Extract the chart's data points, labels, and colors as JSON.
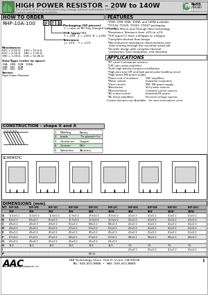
{
  "title": "HIGH POWER RESISTOR – 20W to 140W",
  "subtitle1": "The content of this specification may change without notification 12/07/07",
  "subtitle2": "Custom solutions are available.",
  "how_to_order_title": "HOW TO ORDER",
  "features_title": "FEATURES",
  "features": [
    "20W, 25W, 50W, 100W, and 140W available",
    "TO126, TO220, TO263, TO247 packaging",
    "Surface Mount and Through Hole technology",
    "Resistance Tolerance from ±5% to ±1%",
    "TCR (ppm/°C) from ±250ppm to ±50ppm",
    "Complete thermal flow design",
    "Non-Inductive impedance characteristics and heat venting through the insulated metal tab",
    "Durable design with complete thermal conduction, heat dissipation, and vibration"
  ],
  "applications_title": "APPLICATIONS",
  "applications_col1": [
    "RF circuit termination resistors",
    "CRT color video amplifiers",
    "Suite high-density compact installations",
    "High precision CRT and high speed pulse handling circuit",
    "High speed SW power supply",
    "Power unit of machines",
    "Motor control",
    "Drive circuits",
    "Automotive",
    "Measurements",
    "AC motor control",
    "AC linear amplifiers"
  ],
  "applications_col2": [
    "VHF amplifiers",
    "Industrial computers",
    "IPM, SW power supply",
    "Volt power sources",
    "Constant current sources",
    "Industrial RF power",
    "Precision voltage sources"
  ],
  "applications_footer": "Custom Solutions are Available – for more information, send",
  "construction_title": "CONSTRUCTION – shape X and A",
  "construction_rows": [
    [
      "1",
      "Molding",
      "Epoxy"
    ],
    [
      "2",
      "Leads",
      "Tin plated+Cu"
    ],
    [
      "3",
      "Conductor",
      "Copper"
    ],
    [
      "4",
      "Custom",
      "NiCr"
    ],
    [
      "5",
      "Substrate",
      "Alumina"
    ]
  ],
  "schematic_label": "SCHEMATIC",
  "dimensions_title": "DIMENSIONS (mm)",
  "table_headers": [
    "W/T",
    "RHP-10A",
    "RHP-10B",
    "RHP-10C",
    "RHP-20B",
    "RHP-25C",
    "RHP-25C",
    "RHP-40A",
    "RHP-50B",
    "RHP-50C",
    "RHP-100C"
  ],
  "table_subheaders": [
    "",
    "20W",
    "25W",
    "25W",
    "25W",
    "50W",
    "100W",
    "50W",
    "50W",
    "100W",
    "140W"
  ],
  "dim_labels": [
    "A",
    "B",
    "C",
    "D",
    "E",
    "F",
    "G",
    "H",
    "I",
    "P"
  ],
  "table_data": [
    [
      "A",
      "10.4±0.2",
      "10.4±0.2",
      "10.4±0.2",
      "15.9±0.2",
      "17.8±0.2",
      "17.8±0.2",
      "4.1±0.2",
      "4.1±0.2",
      "4.1±0.2",
      "4.1±0.2"
    ],
    [
      "B",
      "8.1±0.2",
      "8.1±0.2",
      "8.1±0.2",
      "12.7±0.2",
      "15.0±0.2",
      "15.0±0.2",
      "4.1±0.2",
      "4.1±0.2",
      "4.1±0.2",
      "4.1±0.2"
    ],
    [
      "C",
      "4.9±0.2",
      "4.9±0.2",
      "4.9±0.2",
      "8.1±0.2",
      "8.8±0.2",
      "8.8±0.2",
      "4.1±0.2",
      "4.1±0.2",
      "4.1±0.2",
      "4.1±0.2"
    ],
    [
      "D",
      "2.5±0.2",
      "2.5±0.2",
      "2.5±0.2",
      "2.7±0.2",
      "5.2±0.2",
      "5.2±0.2",
      "4.1±0.2",
      "4.1±0.2",
      "4.1±0.2",
      "4.1±0.2"
    ],
    [
      "E",
      "4.5±0.2",
      "4.5±0.2",
      "4.5±0.2",
      "4.5±0.2",
      "4.5±0.2",
      "4.5±0.2",
      "4.1±0.2",
      "4.1±0.2",
      "4.1±0.2",
      "4.1±0.2"
    ],
    [
      "F",
      "0.7±0.1",
      "0.7±0.1",
      "0.7±0.1",
      "0.8±0.1",
      "0.7±0.1",
      "0.7±0.1",
      "0.8±0.1",
      "0.8±0.1",
      "0.8±0.1",
      "0.8±0.1"
    ],
    [
      "G",
      "2.5±0.2",
      "2.5±0.2",
      "2.5±0.2",
      "2.5±0.2",
      "2.5±0.2",
      "2.5±0.2",
      "-",
      "-",
      "-",
      "-"
    ],
    [
      "H",
      "13.0",
      "13.0",
      "13.0",
      "13.0",
      "13.0",
      "13.0",
      "7.0",
      "7.0",
      "7.0",
      "7.0"
    ],
    [
      "I",
      "-",
      "-",
      "-",
      "-",
      "-",
      "-",
      "4.1±0.2",
      "4.1±0.2",
      "4.1±0.2",
      "4.1±0.2"
    ],
    [
      "P",
      "-",
      "-",
      "-",
      "-",
      "M2.15",
      "-",
      "-",
      "-",
      "-",
      "-"
    ]
  ],
  "footer_addr": "188 Technology Drive, Unit H, Irvine, CA 92618",
  "footer_tel": "TEL: 949-453-9888  •  FAX: 949-453-8889",
  "footer_page": "1",
  "bg_color": "#ffffff",
  "header_gray": "#d4d4d4",
  "section_gray": "#c8c8c8",
  "table_header_gray": "#b0b0b0",
  "table_alt_gray": "#e8e8e8"
}
